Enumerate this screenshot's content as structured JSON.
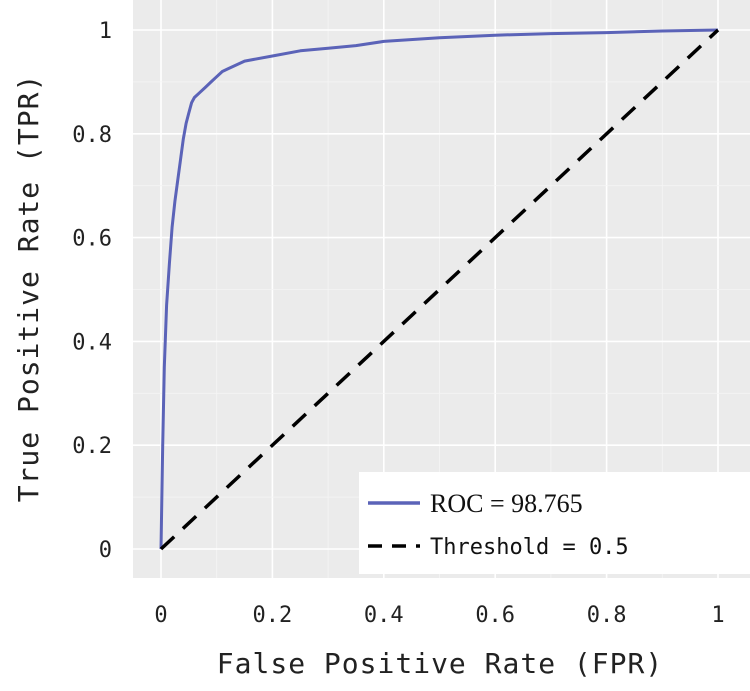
{
  "chart_data": {
    "type": "line",
    "title": "",
    "xlabel": "False Positive Rate (FPR)",
    "ylabel": "True Positive Rate (TPR)",
    "xlim": [
      0,
      1
    ],
    "ylim": [
      0,
      1
    ],
    "x_ticks": [
      "0",
      "0.2",
      "0.4",
      "0.6",
      "0.8",
      "1"
    ],
    "y_ticks": [
      "0",
      "0.2",
      "0.4",
      "0.6",
      "0.8",
      "1"
    ],
    "grid": true,
    "legend_position": "bottom-right",
    "series": [
      {
        "name": "ROC = 98.765",
        "color": "#5b63b8",
        "style": "solid",
        "x": [
          0,
          0.003,
          0.006,
          0.01,
          0.015,
          0.02,
          0.025,
          0.03,
          0.035,
          0.04,
          0.045,
          0.05,
          0.055,
          0.06,
          0.07,
          0.08,
          0.09,
          0.1,
          0.11,
          0.12,
          0.15,
          0.2,
          0.25,
          0.3,
          0.35,
          0.4,
          0.5,
          0.6,
          0.7,
          0.8,
          0.9,
          1
        ],
        "y": [
          0,
          0.2,
          0.35,
          0.47,
          0.55,
          0.62,
          0.67,
          0.71,
          0.75,
          0.79,
          0.82,
          0.84,
          0.86,
          0.87,
          0.88,
          0.89,
          0.9,
          0.91,
          0.92,
          0.925,
          0.94,
          0.95,
          0.96,
          0.965,
          0.97,
          0.978,
          0.985,
          0.99,
          0.993,
          0.995,
          0.998,
          1
        ]
      },
      {
        "name": "Threshold = 0.5",
        "color": "#000000",
        "style": "dashed",
        "x": [
          0,
          1
        ],
        "y": [
          0,
          1
        ]
      }
    ]
  }
}
